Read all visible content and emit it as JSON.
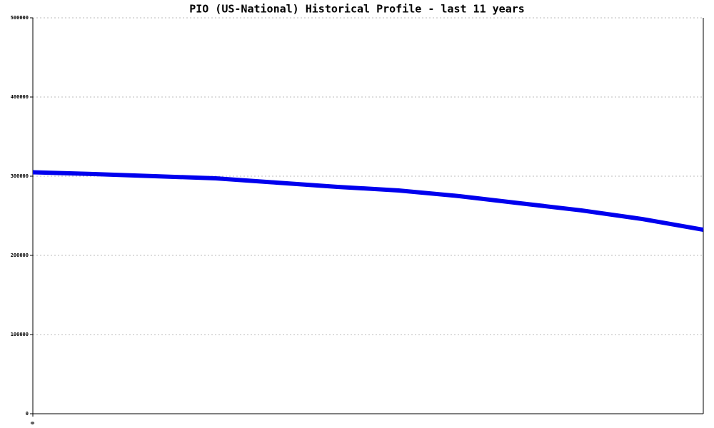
{
  "chart_data": {
    "type": "line",
    "title": "PIO (US-National) Historical Profile - last 11 years",
    "x": [
      0,
      1,
      2,
      3,
      4,
      5,
      6,
      7,
      8,
      9,
      10,
      11
    ],
    "series": [
      {
        "color": "#0000ee",
        "values": [
          305000,
          302700,
          300000,
          297300,
          291900,
          286500,
          282000,
          274800,
          265800,
          256800,
          245900,
          232400
        ]
      }
    ],
    "xlim": [
      0,
      11
    ],
    "xticks": [
      0
    ],
    "ylim": [
      0,
      500000
    ],
    "yticks": [
      0,
      100000,
      200000,
      300000,
      400000,
      500000
    ],
    "grid": true
  }
}
